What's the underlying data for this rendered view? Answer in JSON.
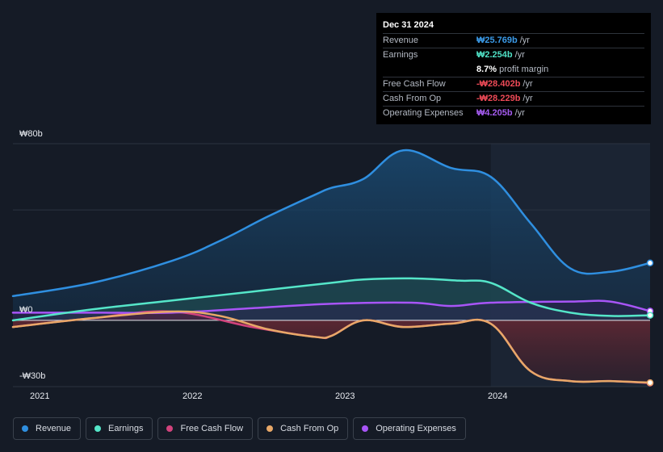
{
  "tooltip": {
    "date": "Dec 31 2024",
    "rows": [
      {
        "label": "Revenue",
        "value": "₩25.769b",
        "unit": "/yr",
        "color": "#3b9be8"
      },
      {
        "label": "Earnings",
        "value": "₩2.254b",
        "unit": "/yr",
        "color": "#4fe0c5"
      },
      {
        "label": "",
        "value": "8.7%",
        "unit": "profit margin",
        "color": "#ffffff"
      },
      {
        "label": "Free Cash Flow",
        "value": "-₩28.402b",
        "unit": "/yr",
        "color": "#ee4a57"
      },
      {
        "label": "Cash From Op",
        "value": "-₩28.229b",
        "unit": "/yr",
        "color": "#ee4a57"
      },
      {
        "label": "Operating Expenses",
        "value": "₩4.205b",
        "unit": "/yr",
        "color": "#a55cf0"
      }
    ]
  },
  "legend": [
    {
      "label": "Revenue",
      "color": "#2f8fe0"
    },
    {
      "label": "Earnings",
      "color": "#55e6c9"
    },
    {
      "label": "Free Cash Flow",
      "color": "#d1437c"
    },
    {
      "label": "Cash From Op",
      "color": "#e8a868"
    },
    {
      "label": "Operating Expenses",
      "color": "#a855f7"
    }
  ],
  "chart_data": {
    "type": "area",
    "currency": "₩",
    "y_tick_labels": [
      "₩80b",
      "₩0",
      "-₩30b"
    ],
    "x_tick_labels": [
      "2021",
      "2022",
      "2023",
      "2024"
    ],
    "ylim": [
      -30,
      80
    ],
    "x_range": [
      2021.0,
      2025.0
    ],
    "highlight_from": 2024.0,
    "series": [
      {
        "name": "Revenue",
        "color": "#2f8fe0",
        "points": [
          [
            2021.0,
            11
          ],
          [
            2021.5,
            17
          ],
          [
            2022.0,
            27
          ],
          [
            2022.3,
            36
          ],
          [
            2022.6,
            47
          ],
          [
            2022.9,
            57
          ],
          [
            2023.0,
            60
          ],
          [
            2023.2,
            64
          ],
          [
            2023.45,
            77
          ],
          [
            2023.75,
            69
          ],
          [
            2024.0,
            65
          ],
          [
            2024.25,
            44
          ],
          [
            2024.5,
            23.5
          ],
          [
            2024.75,
            22
          ],
          [
            2025.0,
            26
          ]
        ]
      },
      {
        "name": "Earnings",
        "color": "#55e6c9",
        "points": [
          [
            2021.0,
            0
          ],
          [
            2021.5,
            5
          ],
          [
            2022.0,
            9
          ],
          [
            2022.5,
            13
          ],
          [
            2023.0,
            17
          ],
          [
            2023.2,
            18.5
          ],
          [
            2023.5,
            19
          ],
          [
            2023.8,
            18
          ],
          [
            2024.0,
            17
          ],
          [
            2024.25,
            8
          ],
          [
            2024.5,
            3.5
          ],
          [
            2024.75,
            2
          ],
          [
            2025.0,
            2.3
          ]
        ]
      },
      {
        "name": "Free Cash Flow",
        "color": "#d1437c",
        "points": [
          [
            2021.0,
            -3
          ],
          [
            2021.5,
            1
          ],
          [
            2022.0,
            4
          ],
          [
            2022.5,
            -3
          ],
          [
            2022.9,
            -7.5
          ],
          [
            2023.0,
            -7
          ],
          [
            2023.2,
            0
          ],
          [
            2023.45,
            -3
          ],
          [
            2023.75,
            -1.5
          ],
          [
            2024.0,
            -1.5
          ],
          [
            2024.25,
            -23
          ],
          [
            2024.5,
            -27.5
          ],
          [
            2024.75,
            -27.5
          ],
          [
            2025.0,
            -28.4
          ]
        ]
      },
      {
        "name": "Cash From Op",
        "color": "#e8a868",
        "points": [
          [
            2021.0,
            -3
          ],
          [
            2021.5,
            1
          ],
          [
            2022.0,
            4
          ],
          [
            2022.3,
            2
          ],
          [
            2022.6,
            -4
          ],
          [
            2022.9,
            -7.5
          ],
          [
            2023.0,
            -7
          ],
          [
            2023.2,
            0
          ],
          [
            2023.45,
            -3
          ],
          [
            2023.75,
            -1.5
          ],
          [
            2024.0,
            -1.5
          ],
          [
            2024.25,
            -23
          ],
          [
            2024.5,
            -27.5
          ],
          [
            2024.75,
            -27.5
          ],
          [
            2025.0,
            -28.2
          ]
        ]
      },
      {
        "name": "Operating Expenses",
        "color": "#a855f7",
        "points": [
          [
            2021.0,
            3.5
          ],
          [
            2021.5,
            3.5
          ],
          [
            2022.0,
            3.5
          ],
          [
            2022.5,
            5.5
          ],
          [
            2023.0,
            7.5
          ],
          [
            2023.5,
            8
          ],
          [
            2023.75,
            6.5
          ],
          [
            2024.0,
            8
          ],
          [
            2024.5,
            8.5
          ],
          [
            2024.75,
            8.5
          ],
          [
            2025.0,
            4.2
          ]
        ]
      }
    ]
  }
}
